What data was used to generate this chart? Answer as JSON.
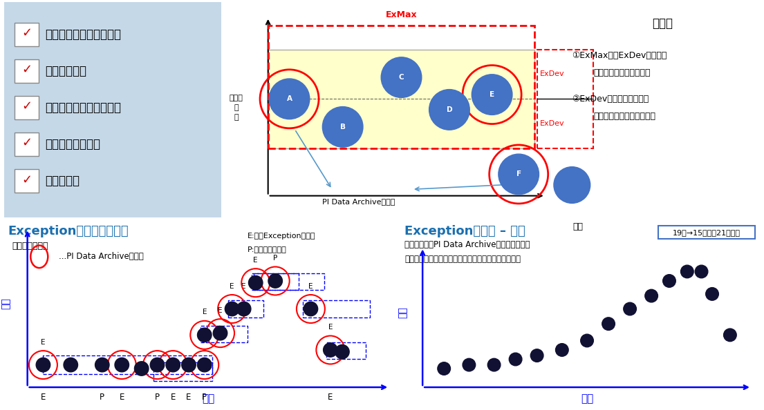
{
  "bg_color": "#ffffff",
  "top_left_bg": "#c8d8e8",
  "top_right_border": "#5bb8d4",
  "checklist": [
    "データ変化傾向を維持し",
    "センサー毎に",
    "圧縮率を設定することで",
    "データ量を削減し",
    "保存できる"
  ],
  "rule_title": "ルール",
  "bottom_left_title": "Exceptionテストの可視化",
  "bottom_right_title": "Exceptionテスト – 結果",
  "time_label": "時間",
  "value_label": "頻度",
  "subtitle_left": "テキストを入力",
  "legend_circle": "...PI Data Archiveへ送信",
  "legend_E": "E:値がExceptionを通過",
  "legend_P": "P:直前の値を送信",
  "result_badge": "19点→15点へ（21％減）",
  "data_value_label": "データの値",
  "pi_label": "PI Data Archiveへ送信",
  "rule_line1": "①ExMax内のExDev範囲内の",
  "rule_line2": "データは取り込まない。",
  "rule_line3": "②ExDev範囲から外れた場",
  "rule_line4": "合、直前の値も取り込む。",
  "result_text1": "これらの値がPI Data Archiveに送信される。",
  "result_text2": "値が送信されると新しいスナップショット値となる。"
}
